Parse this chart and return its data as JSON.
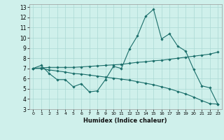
{
  "xlabel": "Humidex (Indice chaleur)",
  "bg_color": "#cff0eb",
  "grid_color": "#aad8d3",
  "line_color": "#1a6e6a",
  "xlim": [
    -0.5,
    23.5
  ],
  "ylim": [
    3,
    13.3
  ],
  "xticks": [
    0,
    1,
    2,
    3,
    4,
    5,
    6,
    7,
    8,
    9,
    10,
    11,
    12,
    13,
    14,
    15,
    16,
    17,
    18,
    19,
    20,
    21,
    22,
    23
  ],
  "yticks": [
    3,
    4,
    5,
    6,
    7,
    8,
    9,
    10,
    11,
    12,
    13
  ],
  "line1_x": [
    0,
    1,
    2,
    3,
    4,
    5,
    6,
    7,
    8,
    9,
    10,
    11,
    12,
    13,
    14,
    15,
    16,
    17,
    18,
    19,
    20,
    21,
    22,
    23
  ],
  "line1_y": [
    7.0,
    7.3,
    6.5,
    5.9,
    5.9,
    5.2,
    5.5,
    4.7,
    4.8,
    5.9,
    7.2,
    7.0,
    8.9,
    10.2,
    12.1,
    12.8,
    9.9,
    10.4,
    9.2,
    8.7,
    6.9,
    5.3,
    5.1,
    3.5
  ],
  "line2_x": [
    0,
    1,
    2,
    3,
    4,
    5,
    6,
    7,
    8,
    9,
    10,
    11,
    12,
    13,
    14,
    15,
    16,
    17,
    18,
    19,
    20,
    21,
    22,
    23
  ],
  "line2_y": [
    7.0,
    7.05,
    7.1,
    7.1,
    7.1,
    7.1,
    7.15,
    7.2,
    7.25,
    7.3,
    7.35,
    7.4,
    7.5,
    7.6,
    7.65,
    7.75,
    7.8,
    7.9,
    8.0,
    8.1,
    8.2,
    8.3,
    8.4,
    8.6
  ],
  "line3_x": [
    0,
    1,
    2,
    3,
    4,
    5,
    6,
    7,
    8,
    9,
    10,
    11,
    12,
    13,
    14,
    15,
    16,
    17,
    18,
    19,
    20,
    21,
    22,
    23
  ],
  "line3_y": [
    7.0,
    7.0,
    6.85,
    6.75,
    6.65,
    6.5,
    6.45,
    6.35,
    6.25,
    6.15,
    6.05,
    5.95,
    5.85,
    5.7,
    5.55,
    5.4,
    5.2,
    5.0,
    4.75,
    4.5,
    4.2,
    3.85,
    3.55,
    3.5
  ]
}
